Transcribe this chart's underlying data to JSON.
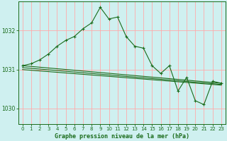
{
  "title": "Graphe pression niveau de la mer (hPa)",
  "bg_color": "#cff0f0",
  "grid_color": "#ffaaaa",
  "line_color": "#1a6b1a",
  "axis_color": "#1a6b1a",
  "ylim": [
    1029.6,
    1032.75
  ],
  "yticks": [
    1030,
    1031,
    1032
  ],
  "xlim": [
    -0.5,
    23.5
  ],
  "xticks": [
    0,
    1,
    2,
    3,
    4,
    5,
    6,
    7,
    8,
    9,
    10,
    11,
    12,
    13,
    14,
    15,
    16,
    17,
    18,
    19,
    20,
    21,
    22,
    23
  ],
  "main_line": {
    "x": [
      0,
      1,
      2,
      3,
      4,
      5,
      6,
      7,
      8,
      9,
      10,
      11,
      12,
      13,
      14,
      15,
      16,
      17,
      18,
      19,
      20,
      21,
      22,
      23
    ],
    "y": [
      1031.1,
      1031.15,
      1031.25,
      1031.4,
      1031.6,
      1031.75,
      1031.85,
      1032.05,
      1032.2,
      1032.6,
      1032.3,
      1032.35,
      1031.85,
      1031.6,
      1031.55,
      1031.1,
      1030.9,
      1031.1,
      1030.45,
      1030.8,
      1030.2,
      1030.1,
      1030.7,
      1030.65
    ]
  },
  "trend_lines": [
    [
      0,
      1031.1,
      23,
      1030.65
    ],
    [
      0,
      1031.05,
      23,
      1030.62
    ],
    [
      0,
      1031.0,
      23,
      1030.6
    ]
  ]
}
